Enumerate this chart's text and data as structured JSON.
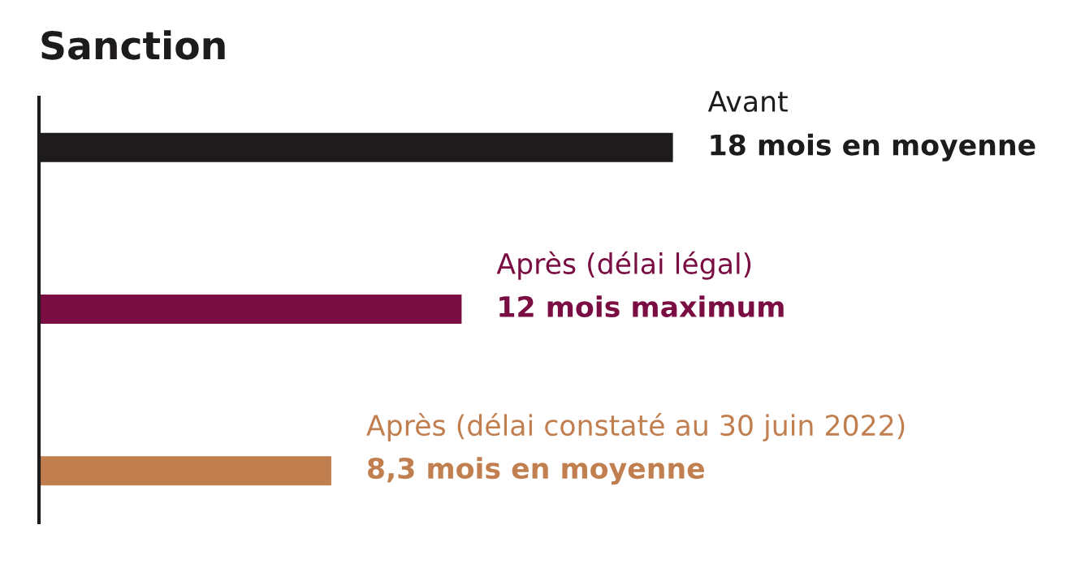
{
  "chart_data": {
    "type": "bar",
    "orientation": "horizontal",
    "title": "Sanction",
    "categories": [
      "Avant",
      "Après (délai légal)",
      "Après (délai constaté au 30 juin 2022)"
    ],
    "values": [
      18,
      12,
      8.3
    ],
    "colors": [
      "#1e1b1c",
      "#7a0d42",
      "#c17f4f"
    ],
    "value_labels": [
      "18 mois en moyenne",
      "12 mois maximum",
      "8,3 mois en moyenne"
    ]
  }
}
